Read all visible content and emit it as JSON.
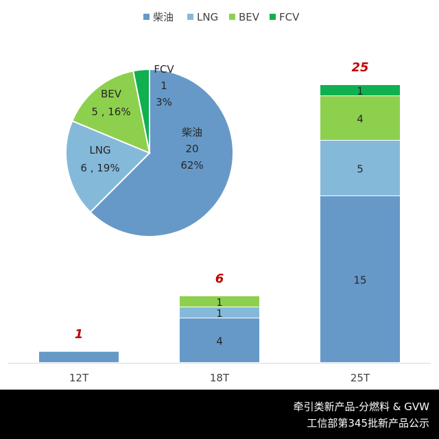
{
  "legend": [
    {
      "label": "柴油",
      "color": "#6699c8"
    },
    {
      "label": "LNG",
      "color": "#85b9da"
    },
    {
      "label": "BEV",
      "color": "#8dd04e"
    },
    {
      "label": "FCV",
      "color": "#10b050"
    }
  ],
  "footer": {
    "line1": "牵引类新产品-分燃料 & GVW",
    "line2": "工信部第345批新产品公示"
  },
  "chart_data": [
    {
      "type": "pie",
      "legend_position": "top",
      "slices": [
        {
          "name": "柴油",
          "value": 20,
          "percent_label": "62%",
          "color": "#6699c8"
        },
        {
          "name": "LNG",
          "value": 6,
          "percent_label": "19%",
          "color": "#85b9da"
        },
        {
          "name": "BEV",
          "value": 5,
          "percent_label": "16%",
          "color": "#8dd04e"
        },
        {
          "name": "FCV",
          "value": 1,
          "percent_label": "3%",
          "color": "#10b050"
        }
      ]
    },
    {
      "type": "bar",
      "stacked": true,
      "categories": [
        "12T",
        "18T",
        "25T"
      ],
      "series": [
        {
          "name": "柴油",
          "values": [
            1,
            4,
            15
          ],
          "color": "#6699c8"
        },
        {
          "name": "LNG",
          "values": [
            0,
            1,
            5
          ],
          "color": "#85b9da"
        },
        {
          "name": "BEV",
          "values": [
            0,
            1,
            4
          ],
          "color": "#8dd04e"
        },
        {
          "name": "FCV",
          "values": [
            0,
            0,
            1
          ],
          "color": "#10b050"
        }
      ],
      "totals": [
        1,
        6,
        25
      ],
      "total_label_color": "#c00000",
      "ylim": [
        0,
        25
      ],
      "grid": false
    }
  ]
}
